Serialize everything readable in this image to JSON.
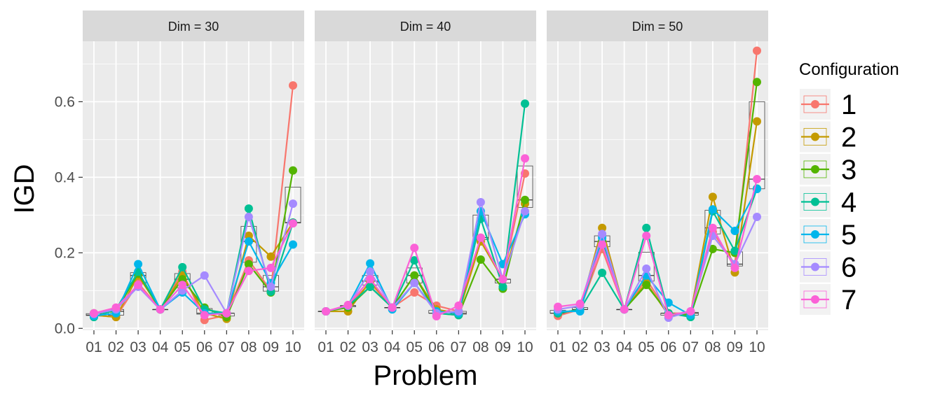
{
  "chart_data": {
    "type": "line",
    "xlabel": "Problem",
    "ylabel": "IGD",
    "ylim": [
      -0.005,
      0.76
    ],
    "yticks": [
      0.0,
      0.2,
      0.4,
      0.6
    ],
    "ytick_labels": [
      "0.0",
      "0.2",
      "0.4",
      "0.6"
    ],
    "grid": true,
    "overlay": "boxplot per problem across configurations",
    "categories": [
      "01",
      "02",
      "03",
      "04",
      "05",
      "06",
      "07",
      "08",
      "09",
      "10"
    ],
    "legend": {
      "title": "Configuration",
      "placement": "right"
    },
    "series_styles": [
      {
        "name": "1",
        "color": "#F8766D"
      },
      {
        "name": "2",
        "color": "#C49A00"
      },
      {
        "name": "3",
        "color": "#53B400"
      },
      {
        "name": "4",
        "color": "#00C094"
      },
      {
        "name": "5",
        "color": "#00B6EB"
      },
      {
        "name": "6",
        "color": "#A58AFF"
      },
      {
        "name": "7",
        "color": "#FB61D7"
      }
    ],
    "panels": [
      {
        "title": "Dim = 30",
        "series": [
          {
            "name": "1",
            "values": [
              0.035,
              0.03,
              0.12,
              0.05,
              0.15,
              0.022,
              0.035,
              0.18,
              0.1,
              0.643
            ]
          },
          {
            "name": "2",
            "values": [
              0.035,
              0.03,
              0.14,
              0.05,
              0.14,
              0.04,
              0.025,
              0.245,
              0.19,
              0.28
            ]
          },
          {
            "name": "3",
            "values": [
              0.04,
              0.045,
              0.145,
              0.05,
              0.13,
              0.055,
              0.03,
              0.17,
              0.095,
              0.418
            ]
          },
          {
            "name": "4",
            "values": [
              0.03,
              0.05,
              0.15,
              0.05,
              0.162,
              0.05,
              0.04,
              0.317,
              0.097,
              0.28
            ]
          },
          {
            "name": "5",
            "values": [
              0.033,
              0.04,
              0.17,
              0.05,
              0.095,
              0.04,
              0.04,
              0.23,
              0.12,
              0.222
            ]
          },
          {
            "name": "6",
            "values": [
              0.038,
              0.05,
              0.11,
              0.05,
              0.1,
              0.14,
              0.04,
              0.295,
              0.11,
              0.33
            ]
          },
          {
            "name": "7",
            "values": [
              0.04,
              0.055,
              0.115,
              0.05,
              0.115,
              0.035,
              0.04,
              0.152,
              0.16,
              0.278
            ]
          }
        ]
      },
      {
        "title": "Dim = 40",
        "series": [
          {
            "name": "1",
            "values": [
              0.045,
              0.06,
              0.12,
              0.055,
              0.095,
              0.06,
              0.045,
              0.24,
              0.13,
              0.41
            ]
          },
          {
            "name": "2",
            "values": [
              0.045,
              0.045,
              0.125,
              0.055,
              0.14,
              0.05,
              0.04,
              0.23,
              0.13,
              0.33
            ]
          },
          {
            "name": "3",
            "values": [
              0.045,
              0.055,
              0.11,
              0.055,
              0.14,
              0.04,
              0.035,
              0.182,
              0.105,
              0.34
            ]
          },
          {
            "name": "4",
            "values": [
              0.045,
              0.06,
              0.11,
              0.055,
              0.18,
              0.04,
              0.035,
              0.29,
              0.11,
              0.595
            ]
          },
          {
            "name": "5",
            "values": [
              0.045,
              0.06,
              0.172,
              0.05,
              0.12,
              0.045,
              0.04,
              0.31,
              0.17,
              0.302
            ]
          },
          {
            "name": "6",
            "values": [
              0.045,
              0.06,
              0.15,
              0.055,
              0.12,
              0.04,
              0.045,
              0.334,
              0.13,
              0.31
            ]
          },
          {
            "name": "7",
            "values": [
              0.045,
              0.062,
              0.13,
              0.055,
              0.213,
              0.032,
              0.06,
              0.24,
              0.13,
              0.45
            ]
          }
        ]
      },
      {
        "title": "Dim = 50",
        "series": [
          {
            "name": "1",
            "values": [
              0.033,
              0.05,
              0.21,
              0.05,
              0.13,
              0.04,
              0.04,
              0.255,
              0.17,
              0.735
            ]
          },
          {
            "name": "2",
            "values": [
              0.04,
              0.05,
              0.266,
              0.05,
              0.12,
              0.035,
              0.04,
              0.348,
              0.148,
              0.548
            ]
          },
          {
            "name": "3",
            "values": [
              0.04,
              0.05,
              0.23,
              0.05,
              0.115,
              0.04,
              0.035,
              0.21,
              0.2,
              0.652
            ]
          },
          {
            "name": "4",
            "values": [
              0.04,
              0.05,
              0.147,
              0.05,
              0.266,
              0.04,
              0.03,
              0.31,
              0.205,
              0.37
            ]
          },
          {
            "name": "5",
            "values": [
              0.045,
              0.045,
              0.24,
              0.05,
              0.14,
              0.068,
              0.035,
              0.315,
              0.258,
              0.369
            ]
          },
          {
            "name": "6",
            "values": [
              0.05,
              0.06,
              0.25,
              0.05,
              0.158,
              0.028,
              0.045,
              0.245,
              0.17,
              0.295
            ]
          },
          {
            "name": "7",
            "values": [
              0.057,
              0.065,
              0.222,
              0.05,
              0.245,
              0.035,
              0.045,
              0.266,
              0.16,
              0.395
            ]
          }
        ]
      }
    ]
  }
}
